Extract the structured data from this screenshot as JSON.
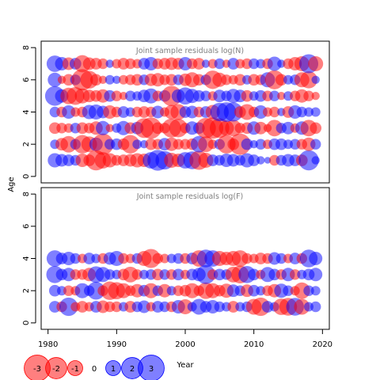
{
  "chart_data": {
    "type": "scatter",
    "subtype": "residual-bubble",
    "xlabel": "Year",
    "ylabel": "Age",
    "xlim": [
      1979,
      2021
    ],
    "ylim": [
      -0.4,
      8.4
    ],
    "x_ticks": [
      1980,
      1990,
      2000,
      2010,
      2020
    ],
    "y_ticks": [
      0,
      2,
      4,
      6,
      8
    ],
    "colors": {
      "positive": "#0000ff",
      "negative": "#ff0000"
    },
    "point_opacity": 0.5,
    "legend": {
      "placement": "bottom-left",
      "entries": [
        {
          "label": "-3",
          "value": -3
        },
        {
          "label": "-2",
          "value": -2
        },
        {
          "label": "-1",
          "value": -1
        },
        {
          "label": "0",
          "value": 0
        },
        {
          "label": "1",
          "value": 1
        },
        {
          "label": "2",
          "value": 2
        },
        {
          "label": "3",
          "value": 3
        }
      ]
    },
    "panels": [
      {
        "id": "N",
        "title": "Joint sample residuals log(N)",
        "ages": [
          1,
          2,
          3,
          4,
          5,
          6,
          7
        ],
        "years": [
          1981,
          1982,
          1983,
          1984,
          1985,
          1986,
          1987,
          1988,
          1989,
          1990,
          1991,
          1992,
          1993,
          1994,
          1995,
          1996,
          1997,
          1998,
          1999,
          2000,
          2001,
          2002,
          2003,
          2004,
          2005,
          2006,
          2007,
          2008,
          2009,
          2010,
          2011,
          2012,
          2013,
          2014,
          2015,
          2016,
          2017,
          2018,
          2019
        ],
        "residuals": [
          [
            0.9,
            0.7,
            0.6,
            0.5,
            -0.8,
            -0.6,
            -1.8,
            -1.2,
            -0.9,
            -0.5,
            -0.6,
            -0.7,
            -0.9,
            -0.8,
            1.2,
            1.9,
            1.5,
            -1.0,
            -0.8,
            1.2,
            1.4,
            -1.6,
            -1.0,
            0.6,
            0.5,
            0.8,
            0.7,
            0.5,
            0.9,
            0.6,
            0.3,
            0.2,
            -0.5,
            0.5,
            0.7,
            0.6,
            -0.6,
            1.8,
            0.3
          ],
          [
            0.4,
            -0.7,
            -1.2,
            0.5,
            -1.5,
            -1.1,
            0.8,
            -2.0,
            0.5,
            0.6,
            -0.6,
            -1.5,
            0.4,
            0.3,
            -0.6,
            -0.5,
            0.7,
            -0.8,
            -0.5,
            -0.5,
            -0.6,
            1.2,
            -1.1,
            -0.4,
            0.5,
            -1.5,
            -0.6,
            -2.0,
            0.6,
            0.3,
            0.5,
            -0.4,
            0.6,
            0.6,
            0.4,
            0.5,
            -0.5,
            -0.8,
            0.5
          ],
          [
            -0.6,
            -0.5,
            -0.4,
            0.5,
            -0.6,
            -0.5,
            -0.8,
            0.9,
            -0.3,
            0.4,
            0.9,
            -0.6,
            0.7,
            -1.7,
            -2.0,
            -0.6,
            -0.5,
            -1.6,
            -1.5,
            -0.5,
            0.8,
            0.6,
            -1.8,
            -2.0,
            -1.7,
            -1.0,
            -1.2,
            -0.5,
            -0.6,
            0.8,
            -0.7,
            -0.3,
            -1.2,
            0.5,
            0.7,
            -0.4,
            0.8,
            -1.2,
            -0.6
          ],
          [
            0.5,
            -0.5,
            0.8,
            -0.4,
            -0.5,
            0.9,
            1.0,
            0.7,
            -0.8,
            -0.5,
            0.6,
            0.4,
            -0.5,
            -0.6,
            -0.5,
            0.7,
            -0.4,
            -0.9,
            -1.1,
            0.6,
            0.7,
            -0.5,
            0.6,
            -0.9,
            1.5,
            1.7,
            1.6,
            -0.6,
            -1.1,
            -0.5,
            0.8,
            -0.4,
            -0.5,
            0.3,
            -0.6,
            0.8,
            0.5,
            0.4,
            0.4
          ],
          [
            1.7,
            0.8,
            -1.2,
            -1.4,
            -1.0,
            -0.7,
            -0.6,
            -0.8,
            0.6,
            -0.5,
            -0.3,
            0.5,
            0.4,
            0.7,
            1.0,
            -0.5,
            0.6,
            -1.8,
            0.8,
            1.3,
            0.9,
            0.6,
            0.5,
            -0.4,
            0.7,
            0.5,
            0.9,
            0.7,
            -0.6,
            0.4,
            0.6,
            -0.5,
            0.5,
            -0.3,
            0.4,
            -0.5,
            -0.8,
            -0.5,
            -0.3
          ],
          [
            0.9,
            -0.3,
            -0.6,
            0.5,
            -2.0,
            -1.4,
            -0.6,
            -0.3,
            0.4,
            0.3,
            -0.4,
            -0.5,
            -0.6,
            0.5,
            -0.7,
            -0.8,
            -0.5,
            -0.6,
            0.5,
            -0.7,
            -1.0,
            -0.6,
            0.5,
            -1.5,
            -0.9,
            -0.5,
            -0.4,
            -0.6,
            0.4,
            -0.6,
            -0.5,
            1.0,
            -1.6,
            -0.6,
            0.4,
            0.5,
            -1.0,
            -1.3,
            0.3
          ],
          [
            1.2,
            0.8,
            -0.7,
            0.6,
            -1.3,
            -0.7,
            -0.6,
            -0.5,
            0.3,
            -0.4,
            -0.6,
            -0.5,
            -0.4,
            0.6,
            0.8,
            -0.5,
            -0.6,
            -0.7,
            -0.6,
            0.8,
            -0.5,
            -0.6,
            0.3,
            -0.4,
            0.5,
            -0.3,
            0.6,
            -0.4,
            -0.5,
            0.5,
            0.4,
            -0.5,
            0.9,
            0.3,
            -0.5,
            -0.8,
            -1.0,
            1.6,
            -1.0
          ]
        ]
      },
      {
        "id": "F",
        "title": "Joint sample residuals log(F)",
        "ages": [
          1,
          2,
          3,
          4
        ],
        "years": [
          1981,
          1982,
          1983,
          1984,
          1985,
          1986,
          1987,
          1988,
          1989,
          1990,
          1991,
          1992,
          1993,
          1994,
          1995,
          1996,
          1997,
          1998,
          1999,
          2000,
          2001,
          2002,
          2003,
          2004,
          2005,
          2006,
          2007,
          2008,
          2009,
          2010,
          2011,
          2012,
          2013,
          2014,
          2015,
          2016,
          2017,
          2018,
          2019
        ],
        "residuals": [
          [
            0.6,
            -0.5,
            1.5,
            -0.4,
            -0.6,
            -0.4,
            0.6,
            -0.7,
            -0.5,
            -0.5,
            0.4,
            -0.6,
            0.5,
            0.7,
            -0.4,
            0.6,
            0.5,
            -0.5,
            0.8,
            -1.0,
            0.4,
            1.1,
            0.6,
            0.8,
            0.5,
            0.4,
            -0.6,
            0.4,
            0.5,
            -1.1,
            -1.5,
            0.6,
            0.4,
            -1.2,
            -1.4,
            1.4,
            -1.1,
            0.4,
            0.5
          ],
          [
            0.6,
            0.4,
            -0.5,
            -0.4,
            1.0,
            0.5,
            1.4,
            -0.5,
            -1.5,
            -1.3,
            -1.0,
            -0.5,
            -0.8,
            0.6,
            -1.0,
            0.5,
            -0.8,
            0.4,
            -0.5,
            -0.6,
            -1.0,
            -0.5,
            -1.2,
            -1.0,
            -0.6,
            -0.9,
            0.7,
            0.5,
            -0.7,
            0.6,
            0.4,
            -0.5,
            -0.8,
            0.9,
            0.5,
            -0.4,
            -1.2,
            0.5,
            0.4
          ],
          [
            1.3,
            0.6,
            0.8,
            -0.5,
            -0.5,
            -0.8,
            1.2,
            1.0,
            0.5,
            0.4,
            -0.6,
            -1.1,
            -0.5,
            0.4,
            0.5,
            -0.6,
            0.5,
            -0.5,
            0.6,
            -0.4,
            0.6,
            0.8,
            1.6,
            -0.5,
            0.6,
            0.5,
            -1.1,
            -1.4,
            1.3,
            0.6,
            -0.4,
            1.0,
            0.6,
            -0.5,
            0.8,
            -0.5,
            0.4,
            0.6,
            0.8
          ],
          [
            1.2,
            0.6,
            0.8,
            0.5,
            -0.4,
            0.6,
            0.4,
            -0.5,
            0.7,
            1.0,
            -0.5,
            -0.4,
            0.5,
            -1.0,
            -1.6,
            -0.5,
            -0.4,
            0.4,
            0.5,
            -0.5,
            0.6,
            -1.2,
            1.4,
            1.2,
            -1.0,
            -0.8,
            -1.0,
            -1.2,
            -0.5,
            -0.4,
            -0.6,
            -0.5,
            0.7,
            0.5,
            -0.4,
            0.6,
            -0.5,
            1.4,
            0.8
          ]
        ]
      }
    ]
  }
}
